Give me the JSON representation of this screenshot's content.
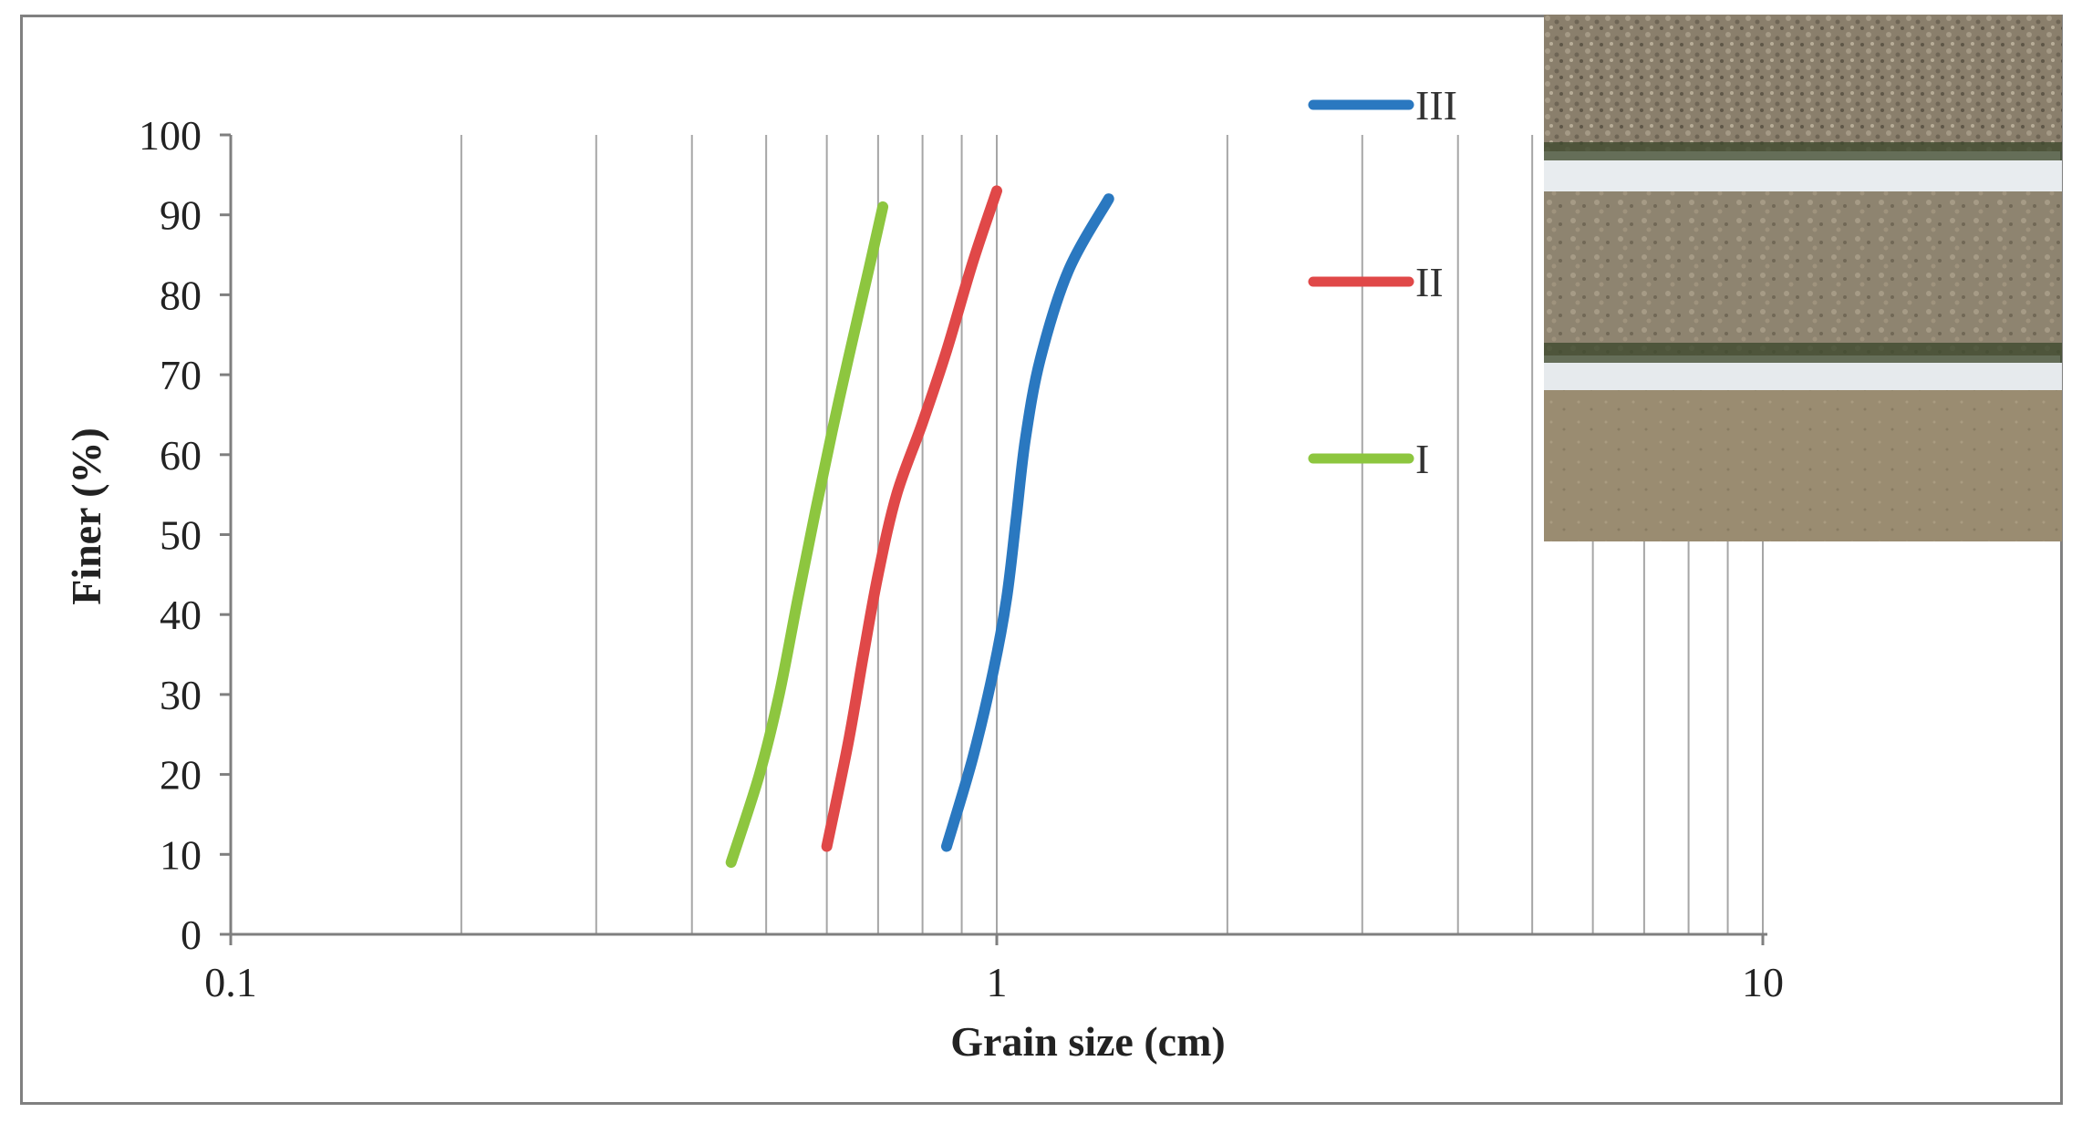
{
  "chart_data": {
    "type": "line",
    "x_scale": "log",
    "xlim": [
      0.1,
      20
    ],
    "ylim": [
      0,
      100
    ],
    "xlabel": "Grain size (cm)",
    "ylabel": "Finer (%)",
    "x_ticks": [
      "0.1",
      "1",
      "10"
    ],
    "y_ticks": [
      "0",
      "10",
      "20",
      "30",
      "40",
      "50",
      "60",
      "70",
      "80",
      "90",
      "100"
    ],
    "grid": {
      "vertical": true,
      "horizontal": false
    },
    "legend_position": "top-right",
    "series": [
      {
        "name": "III",
        "color": "#2a78c0",
        "points": [
          [
            0.86,
            11
          ],
          [
            0.93,
            22
          ],
          [
            0.99,
            33
          ],
          [
            1.03,
            42
          ],
          [
            1.06,
            52
          ],
          [
            1.09,
            62
          ],
          [
            1.14,
            72
          ],
          [
            1.24,
            83
          ],
          [
            1.4,
            92
          ]
        ]
      },
      {
        "name": "II",
        "color": "#e04848",
        "points": [
          [
            0.6,
            11
          ],
          [
            0.64,
            24
          ],
          [
            0.67,
            35
          ],
          [
            0.7,
            45
          ],
          [
            0.74,
            55
          ],
          [
            0.8,
            64
          ],
          [
            0.86,
            73
          ],
          [
            0.93,
            84
          ],
          [
            1.0,
            93
          ]
        ]
      },
      {
        "name": "I",
        "color": "#8dc63f",
        "points": [
          [
            0.45,
            9
          ],
          [
            0.49,
            20
          ],
          [
            0.52,
            30
          ],
          [
            0.55,
            42
          ],
          [
            0.58,
            53
          ],
          [
            0.61,
            63
          ],
          [
            0.64,
            72
          ],
          [
            0.68,
            83
          ],
          [
            0.71,
            91
          ]
        ]
      }
    ]
  },
  "photo": {
    "description_icon": "layered-gravel-photo-icon"
  }
}
